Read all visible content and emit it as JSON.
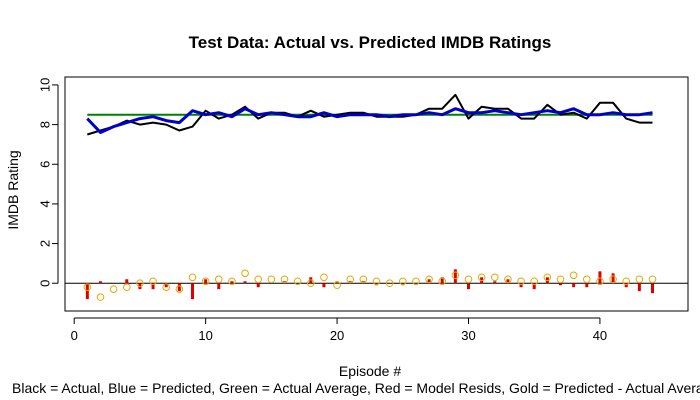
{
  "chart_data": {
    "type": "line",
    "title": "Test Data: Actual vs. Predicted IMDB Ratings",
    "xlabel": "Episode #",
    "ylabel": "IMDB Rating",
    "caption": "Black = Actual, Blue = Predicted, Green = Actual Average, Red = Model Resids, Gold = Predicted - Actual Average",
    "xlim": [
      -0.7,
      46.7
    ],
    "ylim": [
      -1.4,
      10.4
    ],
    "x_ticks": [
      0,
      10,
      20,
      30,
      40
    ],
    "y_ticks": [
      0,
      2,
      4,
      6,
      8,
      10
    ],
    "x": [
      1,
      2,
      3,
      4,
      5,
      6,
      7,
      8,
      9,
      10,
      11,
      12,
      13,
      14,
      15,
      16,
      17,
      18,
      19,
      20,
      21,
      22,
      23,
      24,
      25,
      26,
      27,
      28,
      29,
      30,
      31,
      32,
      33,
      34,
      35,
      36,
      37,
      38,
      39,
      40,
      41,
      42,
      43,
      44
    ],
    "series": [
      {
        "name": "Actual",
        "color": "#000000",
        "style": "line",
        "values": [
          7.5,
          7.7,
          7.9,
          8.2,
          8.0,
          8.1,
          8.0,
          7.7,
          7.9,
          8.7,
          8.3,
          8.5,
          8.9,
          8.3,
          8.6,
          8.6,
          8.4,
          8.7,
          8.4,
          8.5,
          8.6,
          8.6,
          8.4,
          8.4,
          8.4,
          8.5,
          8.8,
          8.8,
          9.5,
          8.3,
          8.9,
          8.8,
          8.8,
          8.3,
          8.3,
          9.0,
          8.5,
          8.6,
          8.3,
          9.1,
          9.1,
          8.3,
          8.1,
          8.1
        ]
      },
      {
        "name": "Predicted",
        "color": "#0000cc",
        "style": "line",
        "values": [
          8.3,
          7.6,
          7.9,
          8.1,
          8.3,
          8.4,
          8.2,
          8.1,
          8.7,
          8.5,
          8.6,
          8.4,
          8.8,
          8.5,
          8.6,
          8.5,
          8.4,
          8.4,
          8.6,
          8.4,
          8.5,
          8.5,
          8.5,
          8.4,
          8.5,
          8.5,
          8.6,
          8.5,
          8.8,
          8.6,
          8.6,
          8.7,
          8.6,
          8.5,
          8.6,
          8.7,
          8.6,
          8.8,
          8.5,
          8.5,
          8.6,
          8.5,
          8.5,
          8.6
        ]
      },
      {
        "name": "Actual Average",
        "color": "#008000",
        "style": "line",
        "values": [
          8.5,
          8.5,
          8.5,
          8.5,
          8.5,
          8.5,
          8.5,
          8.5,
          8.5,
          8.5,
          8.5,
          8.5,
          8.5,
          8.5,
          8.5,
          8.5,
          8.5,
          8.5,
          8.5,
          8.5,
          8.5,
          8.5,
          8.5,
          8.5,
          8.5,
          8.5,
          8.5,
          8.5,
          8.5,
          8.5,
          8.5,
          8.5,
          8.5,
          8.5,
          8.5,
          8.5,
          8.5,
          8.5,
          8.5,
          8.5,
          8.5,
          8.5,
          8.5,
          8.5
        ]
      },
      {
        "name": "Model Resids",
        "color": "#dd0000",
        "style": "segments",
        "values": [
          -0.8,
          0.1,
          0.0,
          0.2,
          -0.3,
          -0.3,
          -0.2,
          -0.4,
          -0.8,
          0.2,
          -0.3,
          0.1,
          0.1,
          -0.2,
          0.0,
          0.1,
          0.0,
          0.3,
          -0.2,
          0.1,
          0.1,
          0.1,
          -0.1,
          0.0,
          -0.1,
          0.0,
          0.2,
          0.3,
          0.7,
          -0.3,
          0.3,
          0.1,
          0.2,
          -0.2,
          -0.3,
          0.3,
          -0.1,
          -0.2,
          -0.2,
          0.6,
          0.5,
          -0.2,
          -0.4,
          -0.5
        ]
      },
      {
        "name": "Predicted - Actual Average",
        "color": "#e6a800",
        "style": "points",
        "values": [
          -0.2,
          -0.7,
          -0.3,
          -0.2,
          0.0,
          0.1,
          -0.2,
          -0.3,
          0.3,
          0.1,
          0.2,
          0.1,
          0.5,
          0.2,
          0.2,
          0.2,
          0.1,
          0.0,
          0.3,
          -0.1,
          0.2,
          0.2,
          0.1,
          0.0,
          0.1,
          0.1,
          0.2,
          0.1,
          0.4,
          0.2,
          0.3,
          0.3,
          0.2,
          0.1,
          0.1,
          0.3,
          0.2,
          0.4,
          0.2,
          0.1,
          0.2,
          0.1,
          0.2,
          0.2
        ]
      }
    ]
  }
}
